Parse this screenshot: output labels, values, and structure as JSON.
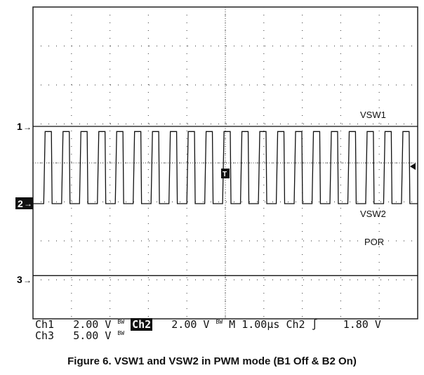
{
  "chart_data": {
    "type": "line",
    "title": "Figure 6. VSW1 and VSW2 in PWM mode (B1 Off & B2 On)",
    "grid": true,
    "divisions": {
      "horizontal": 10,
      "vertical": 8
    },
    "time_per_div_us": 1.0,
    "series": [
      {
        "name": "VSW1",
        "channel": "1",
        "volts_per_div": 2.0,
        "shape": "flat",
        "level_V": 0.0
      },
      {
        "name": "VSW2",
        "channel": "2",
        "volts_per_div": 2.0,
        "shape": "square",
        "low_V": 0.0,
        "high_V": 3.7,
        "period_us": 0.465,
        "duty": 0.35
      },
      {
        "name": "POR",
        "channel": "3",
        "volts_per_div": 5.0,
        "shape": "flat",
        "level_V": 0.5
      }
    ],
    "trigger": {
      "source": "Ch2",
      "level_V": 1.8
    }
  },
  "markers": {
    "ch1": "1",
    "ch2": "2",
    "ch3": "3",
    "trigger": "T"
  },
  "readout": {
    "ch1_label": "Ch1",
    "ch1_scale": "2.00 V",
    "bw": "BW",
    "ch2_label": "Ch2",
    "ch2_scale": "2.00 V",
    "timebase": "M 1.00µs",
    "trig_source": "Ch2",
    "trig_slope": "∫",
    "trig_level": "1.80 V",
    "ch3_label": "Ch3",
    "ch3_scale": "5.00 V"
  },
  "caption": "Figure 6. VSW1 and VSW2 in PWM mode (B1 Off & B2 On)"
}
